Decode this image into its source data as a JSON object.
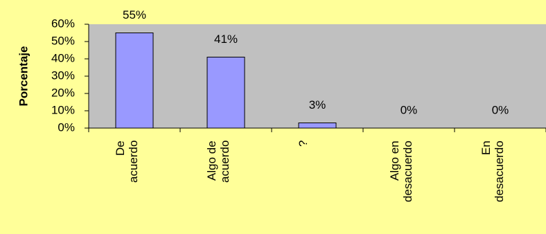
{
  "chart_data": {
    "type": "bar",
    "y_label": "Porcentaje",
    "categories": [
      "De\nacuerdo",
      "Algo de\nacuerdo",
      "?",
      "Algo en\ndesacuerdo",
      "En\ndesacuerdo"
    ],
    "values": [
      55,
      41,
      3,
      0,
      0
    ],
    "value_labels": [
      "55%",
      "41%",
      "3%",
      "0%",
      "0%"
    ],
    "color": "#9999ff",
    "ylim": [
      0,
      60
    ],
    "yticks": [
      {
        "value": 0,
        "label": "0%"
      },
      {
        "value": 10,
        "label": "10%"
      },
      {
        "value": 20,
        "label": "20%"
      },
      {
        "value": 30,
        "label": "30%"
      },
      {
        "value": 40,
        "label": "40%"
      },
      {
        "value": 50,
        "label": "50%"
      },
      {
        "value": 60,
        "label": "60%"
      }
    ]
  }
}
